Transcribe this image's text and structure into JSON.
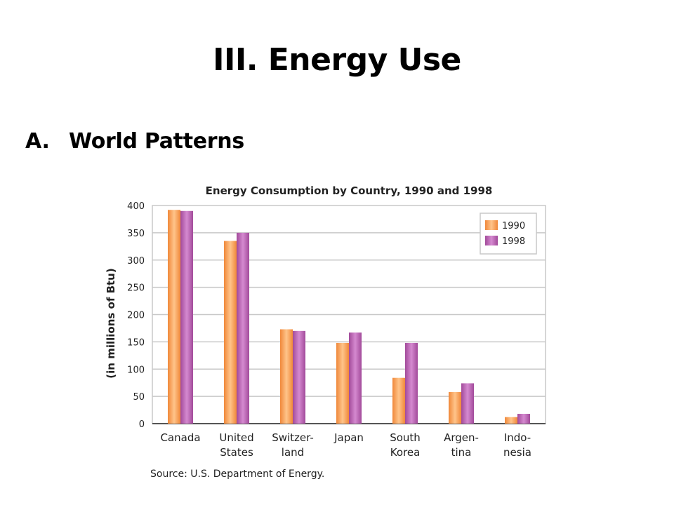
{
  "slide": {
    "title": "III. Energy Use",
    "bullet_marker": "A.",
    "bullet_text": "World Patterns"
  },
  "colors": {
    "series_1990": "#f0883a",
    "series_1998": "#a24a9a",
    "grid": "#c8c8c8",
    "axis": "#555555",
    "text": "#222222"
  },
  "chart_data": {
    "type": "bar",
    "title": "Energy Consumption by Country, 1990 and 1998",
    "ylabel": "(in millions of Btu)",
    "xlabel": "",
    "ylim": [
      0,
      400
    ],
    "yticks": [
      0,
      50,
      100,
      150,
      200,
      250,
      300,
      350,
      400
    ],
    "grid": true,
    "legend_position": "top-right",
    "categories": [
      [
        "Canada"
      ],
      [
        "United",
        "States"
      ],
      [
        "Switzer-",
        "land"
      ],
      [
        "Japan"
      ],
      [
        "South",
        "Korea"
      ],
      [
        "Argen-",
        "tina"
      ],
      [
        "Indo-",
        "nesia"
      ]
    ],
    "series": [
      {
        "name": "1990",
        "values": [
          392,
          335,
          173,
          148,
          84,
          58,
          12
        ]
      },
      {
        "name": "1998",
        "values": [
          390,
          350,
          170,
          167,
          148,
          74,
          18
        ]
      }
    ],
    "source": "Source: U.S. Department of Energy."
  }
}
